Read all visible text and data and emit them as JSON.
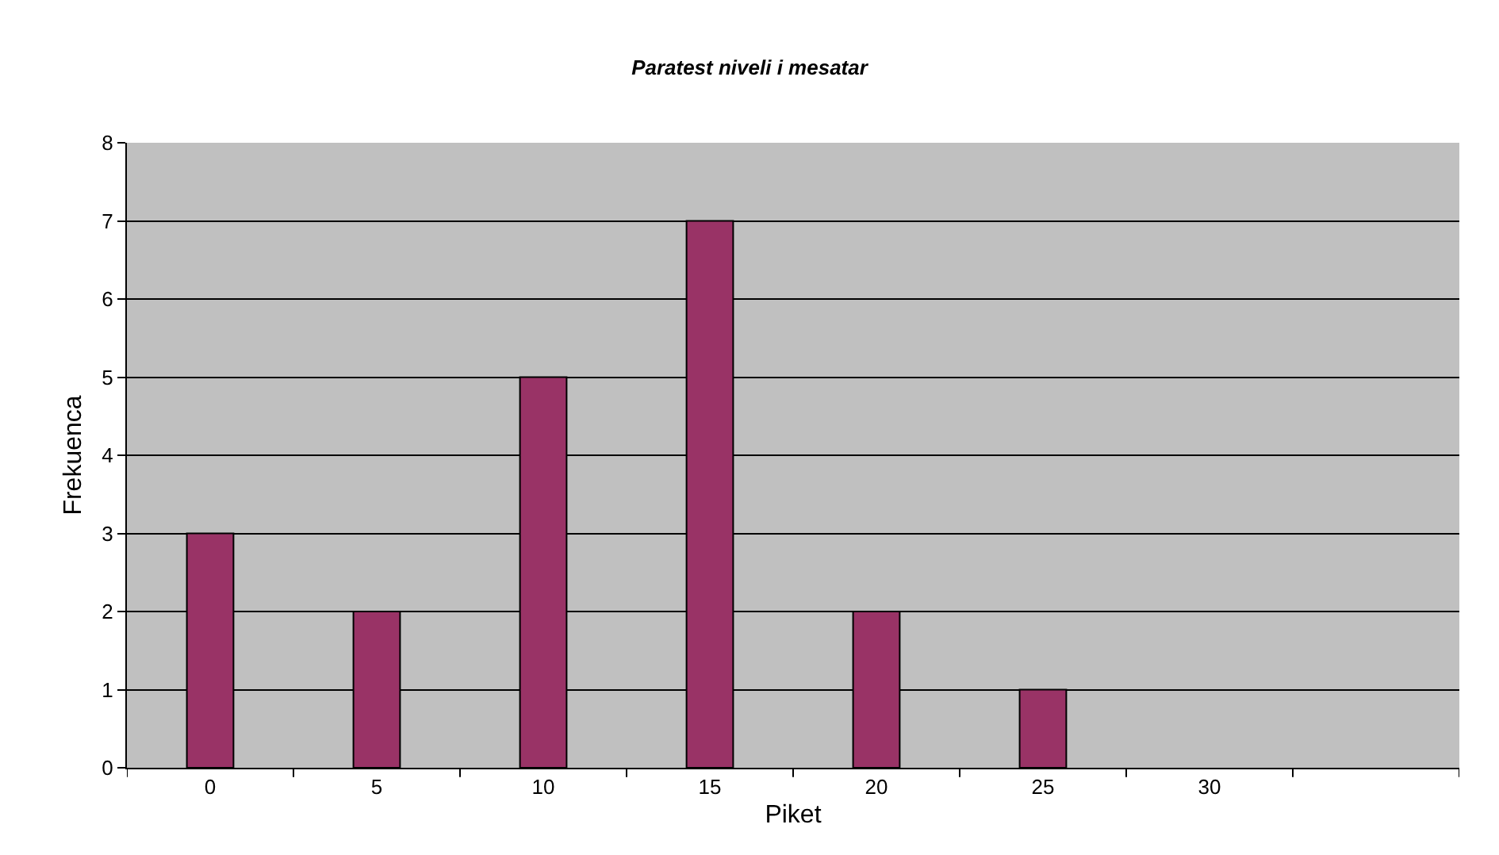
{
  "chart_data": {
    "type": "bar",
    "title": "Paratest niveli i mesatar",
    "xlabel": "Piket",
    "ylabel": "Frekuenca",
    "categories": [
      "0",
      "5",
      "10",
      "15",
      "20",
      "25",
      "30",
      null
    ],
    "values": [
      3,
      2,
      5,
      7,
      2,
      1,
      null,
      null
    ],
    "color": "#993366",
    "ylim": [
      0,
      8
    ],
    "yticks": [
      0,
      1,
      2,
      3,
      4,
      5,
      6,
      7,
      8
    ],
    "grid": "y",
    "legend": false
  }
}
